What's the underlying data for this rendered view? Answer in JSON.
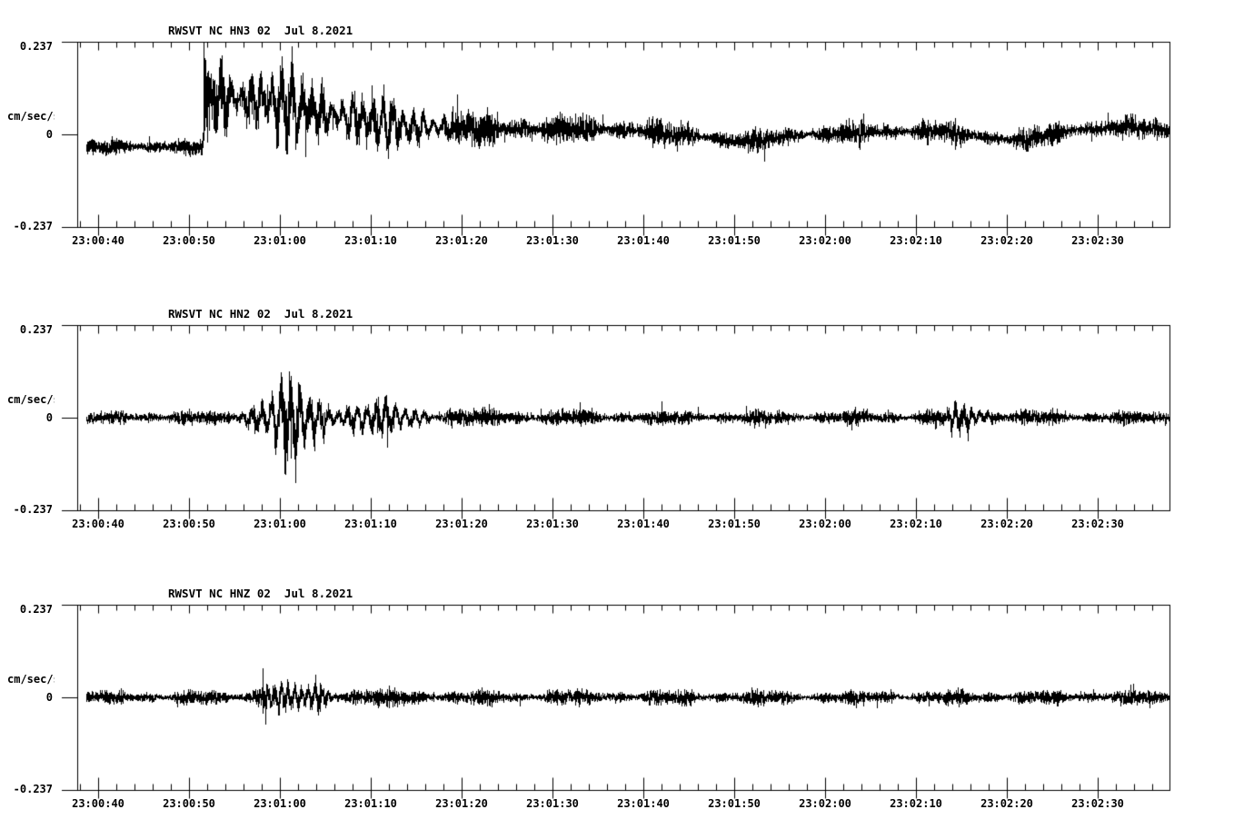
{
  "figure": {
    "background": "#ffffff",
    "ink": "#000000",
    "unit_label": "cm/sec/sec",
    "y_tick_labels": [
      "0.237",
      "0",
      "-0.237"
    ],
    "x_tick_labels": [
      "23:00:40",
      "23:00:50",
      "23:01:00",
      "23:01:10",
      "23:01:20",
      "23:01:30",
      "23:01:40",
      "23:01:50",
      "23:02:00",
      "23:02:10",
      "23:02:20",
      "23:02:30"
    ],
    "x_major_tick_interval_s": 10,
    "x_minor_tick_interval_s": 2
  },
  "chart_data": [
    {
      "type": "line",
      "kind": "seismogram-trace",
      "title": "RWSVT_NC_HN3_02  Jul 8,2021",
      "station": "RWSVT_NC_HN3_02",
      "date": "Jul 8,2021",
      "ylabel": "cm/sec/sec",
      "ylim": [
        -0.237,
        0.237
      ],
      "yticks": [
        0.237,
        0,
        -0.237
      ],
      "grid": false,
      "legend": "none",
      "duration_s": 120.3,
      "data_start_s": 1.0,
      "seed": 11,
      "center": [
        [
          1,
          -0.03
        ],
        [
          13.85,
          -0.034
        ],
        [
          14.0,
          0.095
        ],
        [
          20,
          0.088
        ],
        [
          28,
          0.05
        ],
        [
          36,
          0.02
        ],
        [
          48,
          0.014
        ],
        [
          60,
          0.012
        ],
        [
          68,
          -0.004
        ],
        [
          73,
          -0.02
        ],
        [
          78,
          -0.004
        ],
        [
          86,
          0.006
        ],
        [
          95,
          0.008
        ],
        [
          100,
          -0.008
        ],
        [
          104,
          -0.016
        ],
        [
          110,
          0.012
        ],
        [
          116,
          0.02
        ],
        [
          120.3,
          0.008
        ]
      ],
      "amp": [
        [
          1,
          0.02
        ],
        [
          13.85,
          0.022
        ],
        [
          14.0,
          0.12
        ],
        [
          16,
          0.105
        ],
        [
          22,
          0.1
        ],
        [
          30,
          0.08
        ],
        [
          38,
          0.058
        ],
        [
          46,
          0.04
        ],
        [
          60,
          0.033
        ],
        [
          80,
          0.028
        ],
        [
          100,
          0.028
        ],
        [
          120.3,
          0.03
        ]
      ],
      "osc": [
        {
          "t0": 14,
          "t1": 42,
          "freq": 0.9,
          "mix": 0.55
        }
      ],
      "spikes": [
        [
          13.95,
          0.235
        ],
        [
          14.1,
          0.19
        ],
        [
          14.3,
          -0.02
        ]
      ]
    },
    {
      "type": "line",
      "kind": "seismogram-trace",
      "title": "RWSVT_NC_HN2_02  Jul 8,2021",
      "station": "RWSVT_NC_HN2_02",
      "date": "Jul 8,2021",
      "ylabel": "cm/sec/sec",
      "ylim": [
        -0.237,
        0.237
      ],
      "yticks": [
        0.237,
        0,
        -0.237
      ],
      "grid": false,
      "legend": "none",
      "duration_s": 120.3,
      "data_start_s": 1.0,
      "seed": 22,
      "center": [
        [
          1,
          0.0
        ],
        [
          120.3,
          0.0
        ]
      ],
      "amp": [
        [
          1,
          0.016
        ],
        [
          16,
          0.018
        ],
        [
          18,
          0.032
        ],
        [
          20,
          0.06
        ],
        [
          23,
          0.11
        ],
        [
          25,
          0.08
        ],
        [
          28,
          0.055
        ],
        [
          32,
          0.045
        ],
        [
          36,
          0.032
        ],
        [
          42,
          0.024
        ],
        [
          55,
          0.02
        ],
        [
          75,
          0.018
        ],
        [
          93,
          0.019
        ],
        [
          96,
          0.03
        ],
        [
          98,
          0.042
        ],
        [
          100,
          0.028
        ],
        [
          104,
          0.02
        ],
        [
          120.3,
          0.017
        ]
      ],
      "osc": [
        {
          "t0": 17,
          "t1": 40,
          "freq": 0.95,
          "mix": 0.6
        },
        {
          "t0": 94,
          "t1": 101,
          "freq": 1.1,
          "mix": 0.45
        }
      ],
      "spikes": [
        [
          23.05,
          0.125
        ],
        [
          23.5,
          -0.105
        ]
      ]
    },
    {
      "type": "line",
      "kind": "seismogram-trace",
      "title": "RWSVT_NC_HNZ_02  Jul 8,2021",
      "station": "RWSVT_NC_HNZ_02",
      "date": "Jul 8,2021",
      "ylabel": "cm/sec/sec",
      "ylim": [
        -0.237,
        0.237
      ],
      "yticks": [
        0.237,
        0,
        -0.237
      ],
      "grid": false,
      "legend": "none",
      "duration_s": 120.3,
      "data_start_s": 1.0,
      "seed": 33,
      "center": [
        [
          1,
          0.0
        ],
        [
          120.3,
          0.0
        ]
      ],
      "amp": [
        [
          1,
          0.017
        ],
        [
          19,
          0.018
        ],
        [
          19.6,
          0.03
        ],
        [
          20.5,
          0.075
        ],
        [
          21.5,
          0.05
        ],
        [
          23.5,
          0.032
        ],
        [
          25.5,
          0.03
        ],
        [
          26.5,
          0.05
        ],
        [
          27.5,
          0.035
        ],
        [
          30,
          0.026
        ],
        [
          36,
          0.021
        ],
        [
          50,
          0.019
        ],
        [
          120.3,
          0.018
        ]
      ],
      "osc": [
        {
          "t0": 19.5,
          "t1": 29,
          "freq": 1.35,
          "mix": 0.5
        }
      ],
      "spikes": [
        [
          20.4,
          0.075
        ],
        [
          20.7,
          -0.07
        ]
      ]
    }
  ]
}
